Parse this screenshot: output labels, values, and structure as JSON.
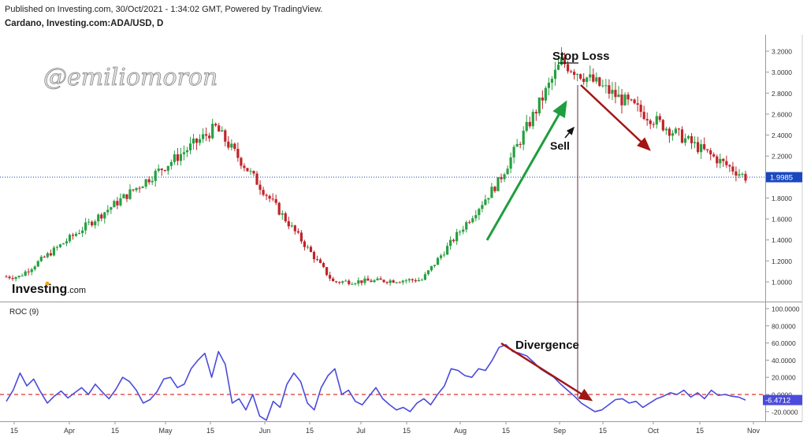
{
  "header": {
    "published": "Published on Investing.com, 30/Oct/2021 - 1:34:02 GMT, Powered by TradingView.",
    "instrument": "Cardano, Investing.com:ADA/USD, D"
  },
  "watermark": "@emiliomoron",
  "logo": {
    "brand": "Investing",
    "suffix": ".com"
  },
  "colors": {
    "up": "#26a041",
    "down": "#c0242a",
    "roc_line": "#4b4bdc",
    "zero_line": "#e03030",
    "price_line": "#1a3fb0",
    "arrow_up": "#1e9e3e",
    "arrow_down": "#a31515",
    "price_tag": "#1a48c0"
  },
  "chart_data": [
    {
      "type": "candlestick",
      "title": "Cardano, Investing.com:ADA/USD, D",
      "x_axis": {
        "tick_labels": [
          "15",
          "Apr",
          "15",
          "May",
          "15",
          "Jun",
          "15",
          "Jul",
          "15",
          "Aug",
          "15",
          "Sep",
          "15",
          "Oct",
          "15",
          "Nov"
        ]
      },
      "y_axis": {
        "tick_labels": [
          "1.0000",
          "1.2000",
          "1.4000",
          "1.6000",
          "1.8000",
          "2.0000",
          "2.2000",
          "2.4000",
          "2.6000",
          "2.8000",
          "3.0000",
          "3.2000"
        ],
        "range": [
          0.9,
          3.3
        ]
      },
      "last_price": 1.9985,
      "last_price_label": "1.9985",
      "key_points": [
        {
          "date": "2021-03-15",
          "close": 1.05
        },
        {
          "date": "2021-05-16",
          "high": 2.47
        },
        {
          "date": "2021-06-22",
          "low": 1.0
        },
        {
          "date": "2021-07-20",
          "low": 1.02
        },
        {
          "date": "2021-08-13",
          "close": 1.95
        },
        {
          "date": "2021-09-02",
          "high": 3.1
        },
        {
          "date": "2021-10-30",
          "close": 1.9985
        }
      ],
      "annotations": [
        "Stop Loss",
        "Sell"
      ],
      "grid": false
    },
    {
      "type": "line",
      "title": "ROC (9)",
      "y_axis": {
        "tick_labels": [
          "100.0000",
          "80.0000",
          "60.0000",
          "40.0000",
          "20.0000",
          "0.0000",
          "-20.0000"
        ],
        "range": [
          -30,
          105
        ]
      },
      "last_value": -6.4712,
      "last_value_label": "-6.4712",
      "zero_line": 0,
      "series": [
        {
          "values": [
            -8,
            5,
            25,
            10,
            18,
            3,
            -10,
            -2,
            4,
            -4,
            2,
            8,
            0,
            12,
            3,
            -5,
            6,
            20,
            15,
            5,
            -10,
            -6,
            3,
            18,
            20,
            8,
            12,
            30,
            40,
            48,
            20,
            50,
            35,
            -10,
            -5,
            -18,
            0,
            -25,
            -30,
            -8,
            -15,
            12,
            25,
            15,
            -10,
            -18,
            8,
            22,
            30,
            0,
            5,
            -8,
            -12,
            -2,
            8,
            -5,
            -12,
            -18,
            -15,
            -20,
            -10,
            -5,
            -12,
            0,
            10,
            30,
            28,
            22,
            20,
            30,
            28,
            40,
            55,
            58,
            50,
            48,
            45,
            38,
            30,
            25,
            20,
            12,
            5,
            -2,
            -10,
            -15,
            -20,
            -18,
            -12,
            -6,
            -5,
            -10,
            -8,
            -15,
            -10,
            -5,
            -2,
            2,
            0,
            5,
            -3,
            2,
            -5,
            5,
            -1,
            0,
            -2,
            -3,
            -6.4712
          ]
        }
      ],
      "annotations": [
        "Divergence"
      ]
    }
  ]
}
